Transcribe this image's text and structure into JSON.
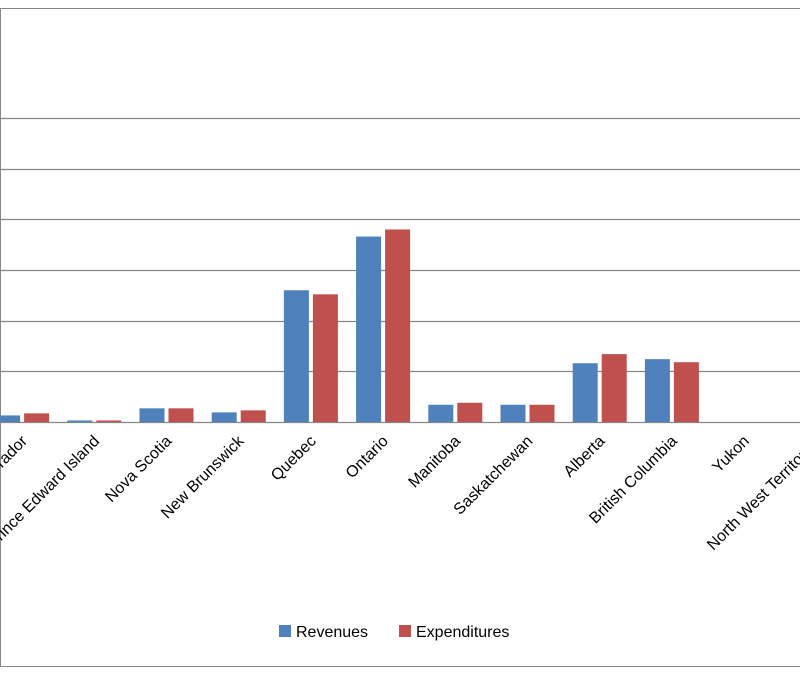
{
  "chart_data": {
    "type": "bar",
    "categories": [
      "Newfoundland and Labrador",
      "Prince Edward Island",
      "Nova Scotia",
      "New Brunswick",
      "Quebec",
      "Ontario",
      "Manitoba",
      "Saskatchewan",
      "Alberta",
      "British Columbia",
      "Yukon",
      "North West Territories"
    ],
    "series": [
      {
        "name": "Revenues",
        "color": "#4f81bd",
        "values": [
          6.5,
          1.5,
          13.5,
          9.5,
          130,
          183,
          17,
          17,
          58,
          62,
          0,
          0
        ]
      },
      {
        "name": "Expenditures",
        "color": "#c0504d",
        "values": [
          8.5,
          1.5,
          13.5,
          11.5,
          126,
          190,
          19,
          17,
          67,
          59,
          0,
          0
        ]
      }
    ],
    "ylim": [
      0,
      300
    ],
    "grid": true,
    "legend": "bottom-center"
  }
}
